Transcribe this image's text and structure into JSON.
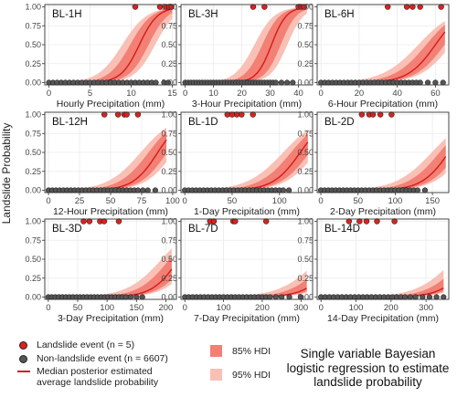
{
  "figure": {
    "ylabel": "Landslide Probability",
    "caption": "Single variable Bayesian logistic regression to estimate landslide probability"
  },
  "legend": {
    "landslide": "Landslide event (n = 5)",
    "nonlandslide": "Non-landslide event (n = 6607)",
    "median_line_1": "Median posterior estimated",
    "median_line_2": "average landslide probability",
    "hdi85": "85% HDI",
    "hdi95": "95% HDI"
  },
  "colors": {
    "landslide_point": "#e0201b",
    "nonlandslide_point": "#555555",
    "median_line": "#d7191c",
    "hdi85": "#f28074",
    "hdi95": "#f9c0b6",
    "panel_border": "#333333",
    "grid": "#ebebeb"
  },
  "chart_data": [
    {
      "type": "scatter",
      "title": "BL-1H",
      "xlabel": "Hourly Precipitation (mm)",
      "ylabel": "Landslide Probability",
      "xlim": [
        -0.5,
        15.5
      ],
      "ylim": [
        -0.03,
        1.03
      ],
      "xticks": [
        0,
        5,
        10,
        15
      ],
      "yticks": [
        0.0,
        0.25,
        0.5,
        0.75,
        1.0
      ],
      "landslide_x": [
        10.5,
        13.5,
        14.2,
        14.6,
        14.9
      ],
      "nonlandslide_x": [
        0,
        0.5,
        1,
        1.5,
        2,
        2.5,
        3,
        3.5,
        4,
        4.5,
        5,
        5.5,
        6,
        6.5,
        7,
        7.5,
        8,
        8.5,
        9,
        9.5,
        10,
        10.5,
        11,
        11.5,
        12,
        12.5,
        13,
        14,
        14.5
      ],
      "median_curve": {
        "x0": 11,
        "k": 0.9,
        "x_end": 15
      }
    },
    {
      "type": "scatter",
      "title": "BL-3H",
      "xlabel": "3-Hour Precipitation (mm)",
      "ylabel": "",
      "xlim": [
        -1.5,
        45
      ],
      "ylim": [
        -0.03,
        1.03
      ],
      "xticks": [
        0,
        10,
        20,
        30,
        40
      ],
      "yticks": [
        0.0,
        0.25,
        0.5,
        0.75,
        1.0
      ],
      "landslide_x": [
        24,
        28,
        40,
        41,
        42
      ],
      "nonlandslide_x": [
        0,
        1,
        2,
        3,
        4,
        5,
        6,
        7,
        8,
        9,
        10,
        11,
        12,
        13,
        14,
        15,
        16,
        17,
        18,
        19,
        20,
        21,
        22,
        23,
        24,
        25,
        26,
        27,
        28,
        29,
        30,
        31,
        32,
        34,
        36,
        38
      ],
      "median_curve": {
        "x0": 30.5,
        "k": 0.38,
        "x_end": 43
      }
    },
    {
      "type": "scatter",
      "title": "BL-6H",
      "xlabel": "6-Hour Precipitation (mm)",
      "ylabel": "",
      "xlim": [
        -2,
        67
      ],
      "ylim": [
        -0.03,
        1.03
      ],
      "xticks": [
        0,
        20,
        40,
        60
      ],
      "yticks": [
        0.0,
        0.25,
        0.5,
        0.75,
        1.0
      ],
      "landslide_x": [
        35,
        45,
        48,
        52,
        63
      ],
      "nonlandslide_x": [
        0,
        2,
        4,
        6,
        8,
        10,
        12,
        14,
        16,
        18,
        20,
        22,
        24,
        26,
        28,
        30,
        32,
        34,
        36,
        38,
        40,
        42,
        44,
        46,
        48,
        50,
        52,
        56,
        60,
        64
      ],
      "median_curve": {
        "x0": 60,
        "k": 0.14,
        "x_end": 65
      }
    },
    {
      "type": "scatter",
      "title": "BL-12H",
      "xlabel": "12-Hour Precipitation (mm)",
      "ylabel": "",
      "xlim": [
        -3,
        103
      ],
      "ylim": [
        -0.03,
        1.03
      ],
      "xticks": [
        0,
        25,
        50,
        75,
        100
      ],
      "yticks": [
        0.0,
        0.25,
        0.5,
        0.75,
        1.0
      ],
      "landslide_x": [
        45,
        56,
        61,
        63,
        72
      ],
      "nonlandslide_x": [
        0,
        3,
        6,
        9,
        12,
        15,
        18,
        21,
        24,
        27,
        30,
        33,
        36,
        39,
        42,
        45,
        48,
        51,
        54,
        57,
        60,
        63,
        66,
        69,
        72,
        76,
        80,
        86
      ],
      "median_curve": {
        "x0": 88,
        "k": 0.1,
        "x_end": 95
      }
    },
    {
      "type": "scatter",
      "title": "BL-1D",
      "xlabel": "1-Day Precipitation (mm)",
      "ylabel": "",
      "xlim": [
        -4,
        135
      ],
      "ylim": [
        -0.03,
        1.03
      ],
      "xticks": [
        0,
        50,
        100
      ],
      "yticks": [
        0.0,
        0.25,
        0.5,
        0.75,
        1.0
      ],
      "landslide_x": [
        45,
        50,
        55,
        60,
        72
      ],
      "nonlandslide_x": [
        0,
        4,
        8,
        12,
        16,
        20,
        24,
        28,
        32,
        36,
        40,
        44,
        48,
        52,
        56,
        60,
        64,
        68,
        72,
        76,
        80,
        84,
        88,
        92,
        96,
        100,
        104,
        110
      ],
      "median_curve": {
        "x0": 122,
        "k": 0.07,
        "x_end": 130
      }
    },
    {
      "type": "scatter",
      "title": "BL-2D",
      "xlabel": "2-Day Precipitation (mm)",
      "ylabel": "",
      "xlim": [
        -5,
        172
      ],
      "ylim": [
        -0.03,
        1.03
      ],
      "xticks": [
        0,
        50,
        100,
        150
      ],
      "yticks": [
        0.0,
        0.25,
        0.5,
        0.75,
        1.0
      ],
      "landslide_x": [
        55,
        65,
        70,
        80,
        95
      ],
      "nonlandslide_x": [
        0,
        5,
        10,
        15,
        20,
        25,
        30,
        35,
        40,
        45,
        50,
        55,
        60,
        65,
        70,
        75,
        80,
        85,
        90,
        95,
        100,
        105,
        110,
        115,
        120,
        125,
        130,
        140
      ],
      "median_curve": {
        "x0": 172,
        "k": 0.055,
        "x_end": 168
      }
    },
    {
      "type": "scatter",
      "title": "BL-3D",
      "xlabel": "3-Day Precipitation (mm)",
      "ylabel": "",
      "xlim": [
        -6,
        218
      ],
      "ylim": [
        -0.03,
        1.03
      ],
      "xticks": [
        0,
        50,
        100,
        150,
        200
      ],
      "yticks": [
        0.0,
        0.25,
        0.5,
        0.75,
        1.0
      ],
      "landslide_x": [
        60,
        70,
        88,
        95,
        120
      ],
      "nonlandslide_x": [
        0,
        6,
        12,
        18,
        24,
        30,
        36,
        42,
        48,
        54,
        60,
        66,
        72,
        78,
        84,
        90,
        96,
        102,
        108,
        114,
        120,
        126,
        132,
        140,
        150,
        160
      ],
      "median_curve": {
        "x0": 222,
        "k": 0.045,
        "x_end": 210
      }
    },
    {
      "type": "scatter",
      "title": "BL-7D",
      "xlabel": "7-Day Precipitation (mm)",
      "ylabel": "",
      "xlim": [
        -10,
        330
      ],
      "ylim": [
        -0.03,
        1.03
      ],
      "xticks": [
        0,
        100,
        200,
        300
      ],
      "yticks": [
        0.0,
        0.25,
        0.5,
        0.75,
        1.0
      ],
      "landslide_x": [
        65,
        75,
        125,
        130,
        210
      ],
      "nonlandslide_x": [
        0,
        10,
        20,
        30,
        40,
        50,
        60,
        70,
        80,
        90,
        100,
        110,
        120,
        130,
        140,
        150,
        160,
        170,
        180,
        190,
        200,
        210,
        220,
        235,
        250,
        270,
        300
      ],
      "median_curve": {
        "x0": 390,
        "k": 0.027,
        "x_end": 315
      }
    },
    {
      "type": "scatter",
      "title": "BL-14D",
      "xlabel": "14-Day Precipitation (mm)",
      "ylabel": "",
      "xlim": [
        -11,
        365
      ],
      "ylim": [
        -0.03,
        1.03
      ],
      "xticks": [
        0,
        100,
        200,
        300
      ],
      "yticks": [
        0.0,
        0.25,
        0.5,
        0.75,
        1.0
      ],
      "landslide_x": [
        80,
        110,
        130,
        160,
        210
      ],
      "nonlandslide_x": [
        0,
        12,
        24,
        36,
        48,
        60,
        72,
        84,
        96,
        108,
        120,
        132,
        144,
        156,
        168,
        180,
        192,
        204,
        216,
        228,
        240,
        255,
        270,
        290,
        310,
        330,
        350
      ],
      "median_curve": {
        "x0": 430,
        "k": 0.025,
        "x_end": 350
      }
    }
  ]
}
